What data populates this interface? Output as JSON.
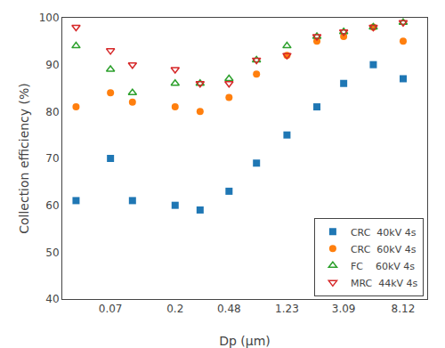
{
  "chart_data": {
    "type": "scatter",
    "xlabel": "Dp (μm)",
    "ylabel": "Collection efficiency (%)",
    "x": [
      0.04,
      0.07,
      0.1,
      0.2,
      0.3,
      0.48,
      0.75,
      1.23,
      2.0,
      3.09,
      5.0,
      8.12
    ],
    "series": [
      {
        "name": "CRC  40kV 4s",
        "marker": "square",
        "values": [
          61,
          70,
          61,
          60,
          59,
          63,
          69,
          75,
          81,
          86,
          90,
          87
        ]
      },
      {
        "name": "CRC  60kV 4s",
        "marker": "circle",
        "values": [
          81,
          84,
          82,
          81,
          80,
          83,
          88,
          92,
          95,
          96,
          98,
          95
        ]
      },
      {
        "name": "FC    60kV 4s",
        "marker": "triangle-up-open",
        "values": [
          94,
          89,
          84,
          86,
          86,
          87,
          91,
          94,
          96,
          97,
          98,
          99
        ]
      },
      {
        "name": "MRC  44kV 4s",
        "marker": "triangle-down-open",
        "values": [
          98,
          93,
          90,
          89,
          86,
          86,
          91,
          92,
          96,
          97,
          98,
          99
        ]
      }
    ],
    "log": "x",
    "xlim": [
      0.032,
      12.0
    ],
    "xticks": [
      0.07,
      0.2,
      0.48,
      1.23,
      3.09,
      8.12
    ],
    "ylim": [
      40,
      100
    ],
    "yticks": [
      40,
      50,
      60,
      70,
      80,
      90,
      100
    ],
    "grid": false,
    "legend": "lower right"
  }
}
